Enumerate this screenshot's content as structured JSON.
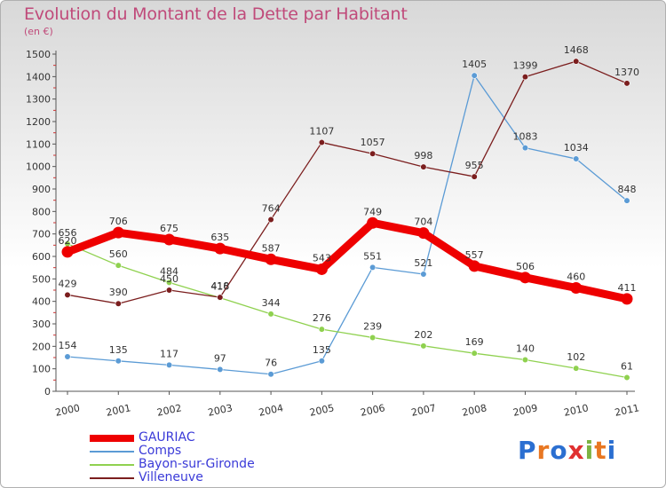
{
  "header": {
    "title": "Evolution du Montant de la Dette par Habitant",
    "unit": "(en €)"
  },
  "logo": {
    "letters": [
      "P",
      "r",
      "o",
      "x",
      "i",
      "t",
      "i"
    ],
    "colors": [
      "#2b6fd1",
      "#e87722",
      "#2b6fd1",
      "#e03030",
      "#7cb342",
      "#e87722",
      "#2b6fd1"
    ]
  },
  "chart_data": {
    "type": "line",
    "title": "Evolution du Montant de la Dette par Habitant",
    "ylabel": "(en €)",
    "x": [
      "2000",
      "2001",
      "2002",
      "2003",
      "2004",
      "2005",
      "2006",
      "2007",
      "2008",
      "2009",
      "2010",
      "2011"
    ],
    "ylim": [
      0,
      1500
    ],
    "yticks": [
      0,
      100,
      200,
      300,
      400,
      500,
      600,
      700,
      800,
      900,
      1000,
      1100,
      1200,
      1300,
      1400,
      1500
    ],
    "grid": false,
    "legend_position": "bottom-left",
    "series": [
      {
        "name": "GAURIAC",
        "color": "#ee0000",
        "values": [
          620,
          706,
          675,
          635,
          587,
          543,
          749,
          704,
          557,
          506,
          460,
          411
        ]
      },
      {
        "name": "Comps",
        "color": "#5b9bd5",
        "values": [
          154,
          135,
          117,
          97,
          76,
          135,
          551,
          521,
          1405,
          1083,
          1034,
          848
        ]
      },
      {
        "name": "Bayon-sur-Gironde",
        "color": "#8fd14f",
        "values": [
          656,
          560,
          484,
          416,
          344,
          276,
          239,
          202,
          169,
          140,
          102,
          61
        ]
      },
      {
        "name": "Villeneuve",
        "color": "#7b1e1e",
        "values": [
          429,
          390,
          450,
          418,
          764,
          1107,
          1057,
          998,
          955,
          1399,
          1468,
          1370
        ]
      }
    ]
  }
}
